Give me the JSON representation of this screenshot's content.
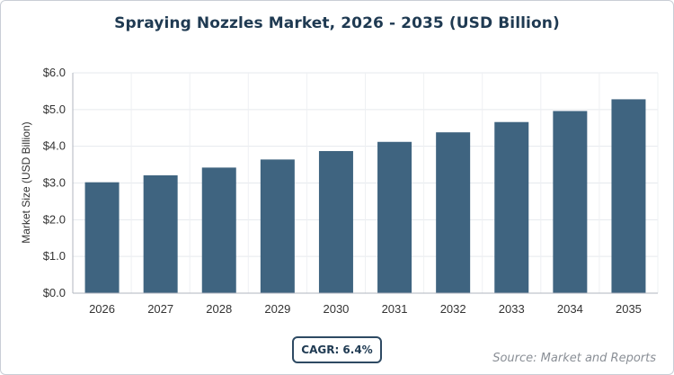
{
  "chart_data": {
    "type": "bar",
    "title": "Spraying Nozzles Market, 2026 - 2035 (USD Billion)",
    "xlabel": "",
    "ylabel": "Market Size (USD Billion)",
    "categories": [
      "2026",
      "2027",
      "2028",
      "2029",
      "2030",
      "2031",
      "2032",
      "2033",
      "2034",
      "2035"
    ],
    "values": [
      3.02,
      3.21,
      3.42,
      3.64,
      3.87,
      4.12,
      4.38,
      4.66,
      4.96,
      5.28
    ],
    "ylim": [
      0,
      6
    ],
    "yticks": [
      0,
      1,
      2,
      3,
      4,
      5,
      6
    ],
    "ytick_labels": [
      "$0.0",
      "$1.0",
      "$2.0",
      "$3.0",
      "$4.0",
      "$5.0",
      "$6.0"
    ],
    "grid": true,
    "bar_color": "#3f6480"
  },
  "badge": {
    "cagr_text": "CAGR: 6.4%"
  },
  "footer": {
    "source_text": "Source: Market and Reports"
  }
}
